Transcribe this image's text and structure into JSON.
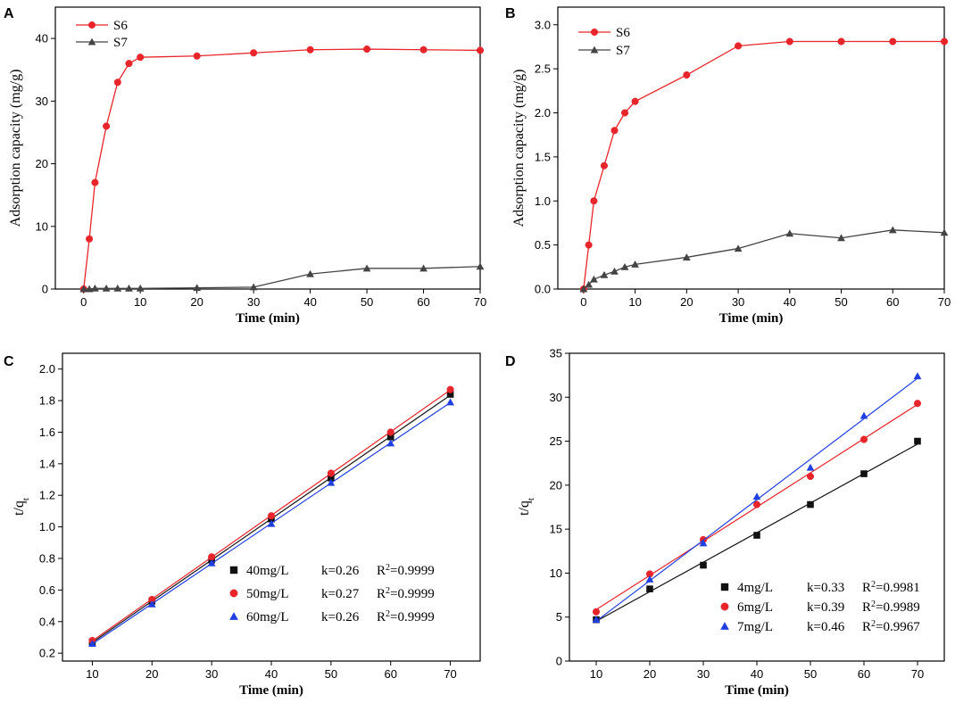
{
  "chart_data": [
    {
      "panel": "A",
      "type": "line",
      "xlabel": "Time (min)",
      "ylabel": "Adsorption capacity (mg/g)",
      "xlim": [
        -5,
        70
      ],
      "ylim": [
        0,
        45
      ],
      "xticks": [
        0,
        10,
        20,
        30,
        40,
        50,
        60,
        70
      ],
      "yticks": [
        0,
        10,
        20,
        30,
        40
      ],
      "tick_labels_x": [
        "0",
        "10",
        "20",
        "30",
        "40",
        "50",
        "60",
        "70"
      ],
      "tick_labels_y": [
        "0",
        "10",
        "20",
        "30",
        "40"
      ],
      "legend_position": "top-left",
      "series": [
        {
          "name": "S6",
          "color": "#e8252a",
          "marker": "circle",
          "x": [
            0,
            1,
            2,
            4,
            6,
            8,
            10,
            20,
            30,
            40,
            50,
            60,
            70
          ],
          "y": [
            0,
            8,
            17,
            26,
            33,
            36,
            37,
            37.2,
            37.7,
            38.2,
            38.3,
            38.2,
            38.1
          ]
        },
        {
          "name": "S7",
          "color": "#444444",
          "marker": "triangle",
          "x": [
            0,
            1,
            2,
            4,
            6,
            8,
            10,
            20,
            30,
            40,
            50,
            60,
            70
          ],
          "y": [
            0,
            0,
            0.1,
            0.1,
            0.1,
            0.1,
            0.1,
            0.2,
            0.3,
            2.4,
            3.3,
            3.3,
            3.6
          ]
        }
      ]
    },
    {
      "panel": "B",
      "type": "line",
      "xlabel": "Time (min)",
      "ylabel": "Adsorption capacity (mg/g)",
      "xlim": [
        -5,
        70
      ],
      "ylim": [
        0,
        3.2
      ],
      "xticks": [
        0,
        10,
        20,
        30,
        40,
        50,
        60,
        70
      ],
      "yticks": [
        0,
        0.5,
        1.0,
        1.5,
        2.0,
        2.5,
        3.0
      ],
      "tick_labels_x": [
        "0",
        "10",
        "20",
        "30",
        "40",
        "50",
        "60",
        "70"
      ],
      "tick_labels_y": [
        "0.0",
        "0.5",
        "1.0",
        "1.5",
        "2.0",
        "2.5",
        "3.0"
      ],
      "legend_position": "top-left",
      "series": [
        {
          "name": "S6",
          "color": "#e8252a",
          "marker": "circle",
          "x": [
            0,
            1,
            2,
            4,
            6,
            8,
            10,
            20,
            30,
            40,
            50,
            60,
            70
          ],
          "y": [
            0,
            0.5,
            1.0,
            1.4,
            1.8,
            2.0,
            2.13,
            2.43,
            2.76,
            2.81,
            2.81,
            2.81,
            2.81
          ]
        },
        {
          "name": "S7",
          "color": "#444444",
          "marker": "triangle",
          "x": [
            0,
            1,
            2,
            4,
            6,
            8,
            10,
            20,
            30,
            40,
            50,
            60,
            70
          ],
          "y": [
            0,
            0.05,
            0.11,
            0.16,
            0.2,
            0.25,
            0.28,
            0.36,
            0.46,
            0.63,
            0.58,
            0.67,
            0.64
          ]
        }
      ]
    },
    {
      "panel": "C",
      "type": "scatter",
      "xlabel": "Time (min)",
      "ylabel": "t/q",
      "ylabel_sub": "t",
      "xlim": [
        5,
        75
      ],
      "ylim": [
        0.15,
        2.1
      ],
      "xticks": [
        10,
        20,
        30,
        40,
        50,
        60,
        70
      ],
      "yticks": [
        0.2,
        0.4,
        0.6,
        0.8,
        1.0,
        1.2,
        1.4,
        1.6,
        1.8,
        2.0
      ],
      "tick_labels_x": [
        "10",
        "20",
        "30",
        "40",
        "50",
        "60",
        "70"
      ],
      "tick_labels_y": [
        "0.2",
        "0.4",
        "0.6",
        "0.8",
        "1.0",
        "1.2",
        "1.4",
        "1.6",
        "1.8",
        "2.0"
      ],
      "legend_position": "bottom-right",
      "series": [
        {
          "name": "40mg/L",
          "k": "k=0.26",
          "r2_prefix": "R",
          "r2_sup": "2",
          "r2_value": "=0.9999",
          "color": "#111111",
          "marker": "square",
          "x": [
            10,
            20,
            30,
            40,
            50,
            60,
            70
          ],
          "y": [
            0.27,
            0.53,
            0.79,
            1.05,
            1.31,
            1.57,
            1.84
          ]
        },
        {
          "name": "50mg/L",
          "k": "k=0.27",
          "r2_prefix": "R",
          "r2_sup": "2",
          "r2_value": "=0.9999",
          "color": "#e8252a",
          "marker": "circle",
          "x": [
            10,
            20,
            30,
            40,
            50,
            60,
            70
          ],
          "y": [
            0.28,
            0.54,
            0.81,
            1.07,
            1.34,
            1.6,
            1.87
          ]
        },
        {
          "name": "60mg/L",
          "k": "k=0.26",
          "r2_prefix": "R",
          "r2_sup": "2",
          "r2_value": "=0.9999",
          "color": "#1f3fe0",
          "marker": "triangle",
          "x": [
            10,
            20,
            30,
            40,
            50,
            60,
            70
          ],
          "y": [
            0.26,
            0.51,
            0.77,
            1.02,
            1.28,
            1.53,
            1.79
          ]
        }
      ]
    },
    {
      "panel": "D",
      "type": "scatter",
      "xlabel": "Time (min)",
      "ylabel": "t/q",
      "ylabel_sub": "t",
      "xlim": [
        5,
        75
      ],
      "ylim": [
        0,
        35
      ],
      "xticks": [
        10,
        20,
        30,
        40,
        50,
        60,
        70
      ],
      "yticks": [
        0,
        5,
        10,
        15,
        20,
        25,
        30,
        35
      ],
      "tick_labels_x": [
        "10",
        "20",
        "30",
        "40",
        "50",
        "60",
        "70"
      ],
      "tick_labels_y": [
        "0",
        "5",
        "10",
        "15",
        "20",
        "25",
        "30",
        "35"
      ],
      "legend_position": "bottom-right",
      "series": [
        {
          "name": "4mg/L",
          "k": "k=0.33",
          "r2_prefix": "R",
          "r2_sup": "2",
          "r2_value": "=0.9981",
          "color": "#111111",
          "marker": "square",
          "x": [
            10,
            20,
            30,
            40,
            50,
            60,
            70
          ],
          "y": [
            4.7,
            8.2,
            10.9,
            14.3,
            17.8,
            21.3,
            25.0
          ]
        },
        {
          "name": "6mg/L",
          "k": "k=0.39",
          "r2_prefix": "R",
          "r2_sup": "2",
          "r2_value": "=0.9989",
          "color": "#e8252a",
          "marker": "circle",
          "x": [
            10,
            20,
            30,
            40,
            50,
            60,
            70
          ],
          "y": [
            5.6,
            9.9,
            13.8,
            17.8,
            21.0,
            25.2,
            29.3
          ]
        },
        {
          "name": "7mg/L",
          "k": "k=0.46",
          "r2_prefix": "R",
          "r2_sup": "2",
          "r2_value": "=0.9967",
          "color": "#1f3fe0",
          "marker": "triangle",
          "x": [
            10,
            20,
            30,
            40,
            50,
            60,
            70
          ],
          "y": [
            4.7,
            9.3,
            13.4,
            18.7,
            22.0,
            27.9,
            32.4
          ]
        }
      ]
    }
  ]
}
